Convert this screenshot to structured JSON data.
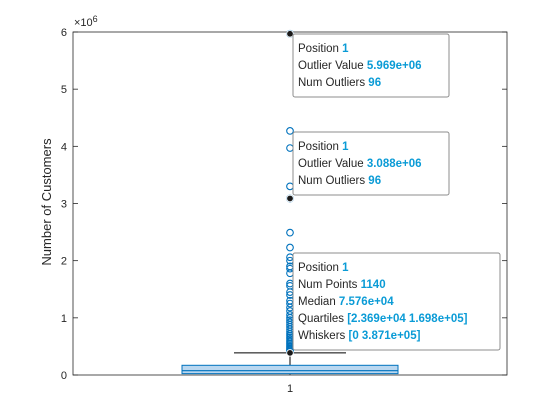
{
  "chart_data": {
    "type": "box",
    "categories": [
      "1"
    ],
    "ylabel": "Number of Customers",
    "exponent_label": "×10",
    "exponent_power": "6",
    "y_scale": 1000000,
    "ylim": [
      0,
      6000000
    ],
    "yticks": [
      0,
      1000000,
      2000000,
      3000000,
      4000000,
      5000000,
      6000000
    ],
    "ytick_labels": [
      "0",
      "1",
      "2",
      "3",
      "4",
      "5",
      "6"
    ],
    "box": {
      "position": 1,
      "q1": 23690,
      "median": 75760,
      "q3": 169800,
      "whisker_low": 0,
      "whisker_high": 387100,
      "num_points": 1140,
      "num_outliers": 96
    },
    "outliers": [
      5969000,
      4270000,
      3970000,
      3300000,
      3088000,
      2490000,
      2230000,
      2060000,
      2000000,
      1900000,
      1860000,
      1780000,
      1600000,
      1560000,
      1450000,
      1400000,
      1300000,
      1250000,
      1180000,
      1120000,
      1050000,
      1000000,
      960000,
      920000,
      880000,
      840000,
      800000,
      760000,
      720000,
      690000,
      660000,
      630000,
      600000,
      575000,
      550000,
      525000,
      500000,
      480000,
      460000,
      440000,
      420000,
      400000
    ],
    "colors": {
      "box_fill": "#b9d7f0",
      "box_edge": "#0072bd",
      "outlier": "#0072bd",
      "median": "#0072bd",
      "whisker": "#000000",
      "value_text": "#0a9bd6"
    },
    "tooltips": [
      {
        "anchor_value": 5969000,
        "rows": [
          {
            "label": "Position",
            "value": "1"
          },
          {
            "label": "Outlier Value",
            "value": "5.969e+06"
          },
          {
            "label": "Num Outliers",
            "value": "96"
          }
        ]
      },
      {
        "anchor_value": 3088000,
        "rows": [
          {
            "label": "Position",
            "value": "1"
          },
          {
            "label": "Outlier Value",
            "value": "3.088e+06"
          },
          {
            "label": "Num Outliers",
            "value": "96"
          }
        ]
      },
      {
        "anchor_value": 387100,
        "rows": [
          {
            "label": "Position",
            "value": "1"
          },
          {
            "label": "Num Points",
            "value": "1140"
          },
          {
            "label": "Median",
            "value": "7.576e+04"
          },
          {
            "label": "Quartiles",
            "value": "[2.369e+04 1.698e+05]"
          },
          {
            "label": "Whiskers",
            "value": "[0 3.871e+05]"
          }
        ]
      }
    ]
  }
}
